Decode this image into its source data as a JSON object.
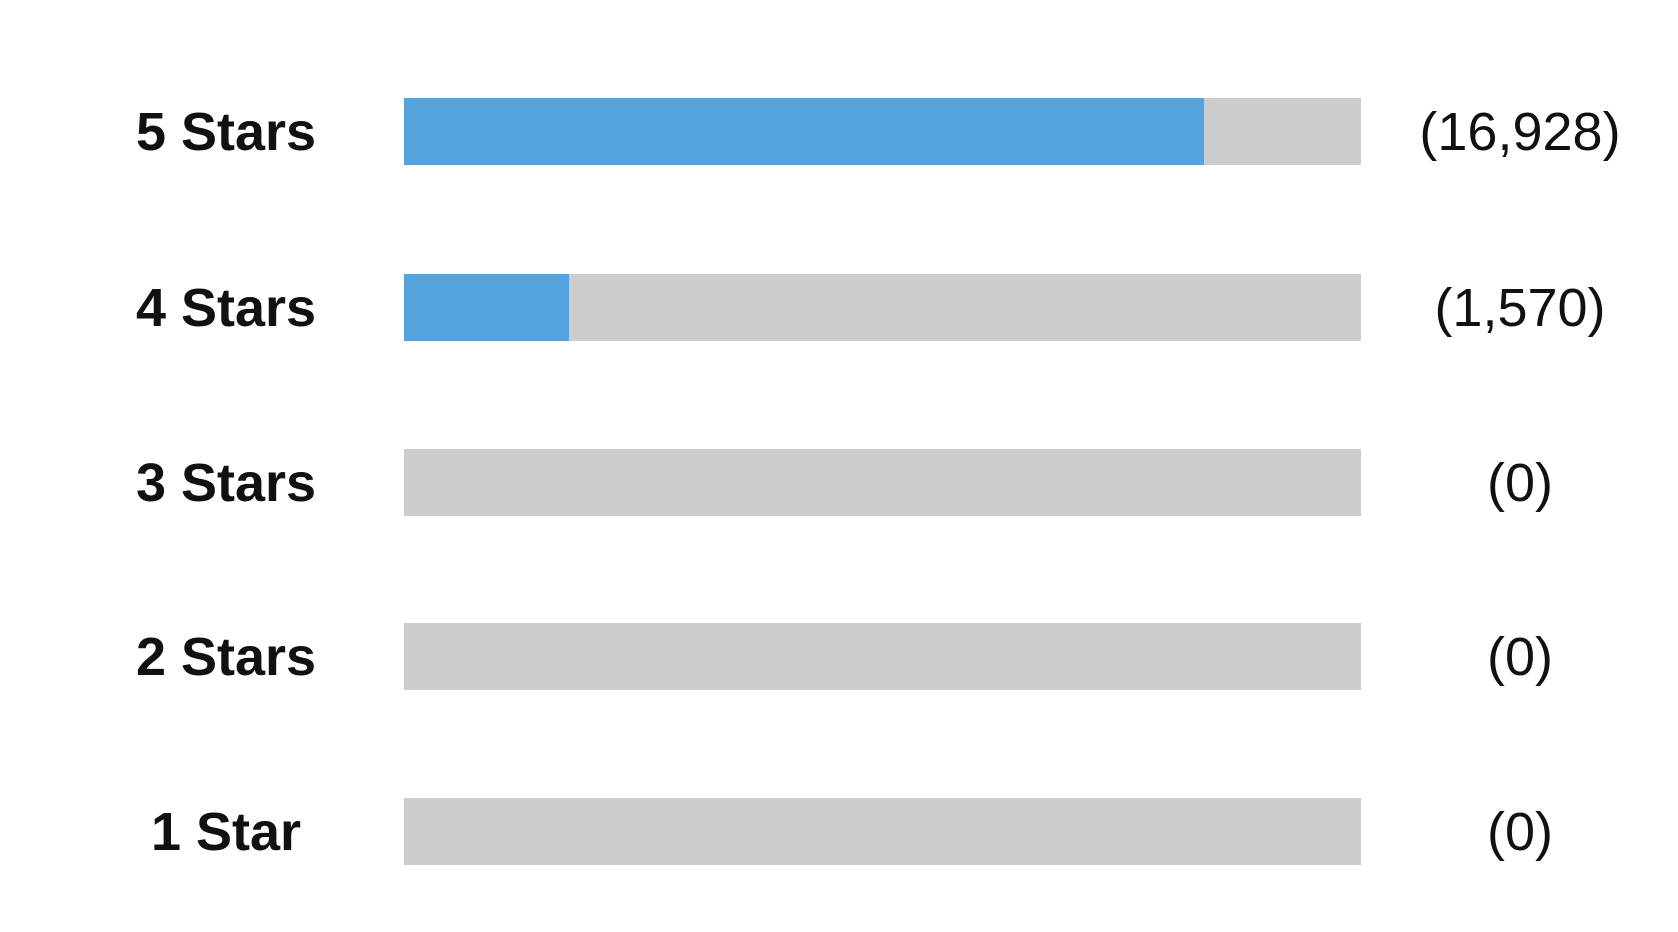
{
  "chart_data": {
    "type": "bar",
    "orientation": "horizontal",
    "categories": [
      "5 Stars",
      "4 Stars",
      "3 Stars",
      "2 Stars",
      "1 Star"
    ],
    "counts": [
      "(16,928)",
      "(1,570)",
      "(0)",
      "(0)",
      "(0)"
    ],
    "values": [
      16928,
      1570,
      0,
      0,
      0
    ],
    "fill_fraction": [
      0.836,
      0.172,
      0,
      0,
      0
    ],
    "colors": {
      "fill": "#55a3de",
      "track": "#cccccc"
    },
    "grid": false
  }
}
